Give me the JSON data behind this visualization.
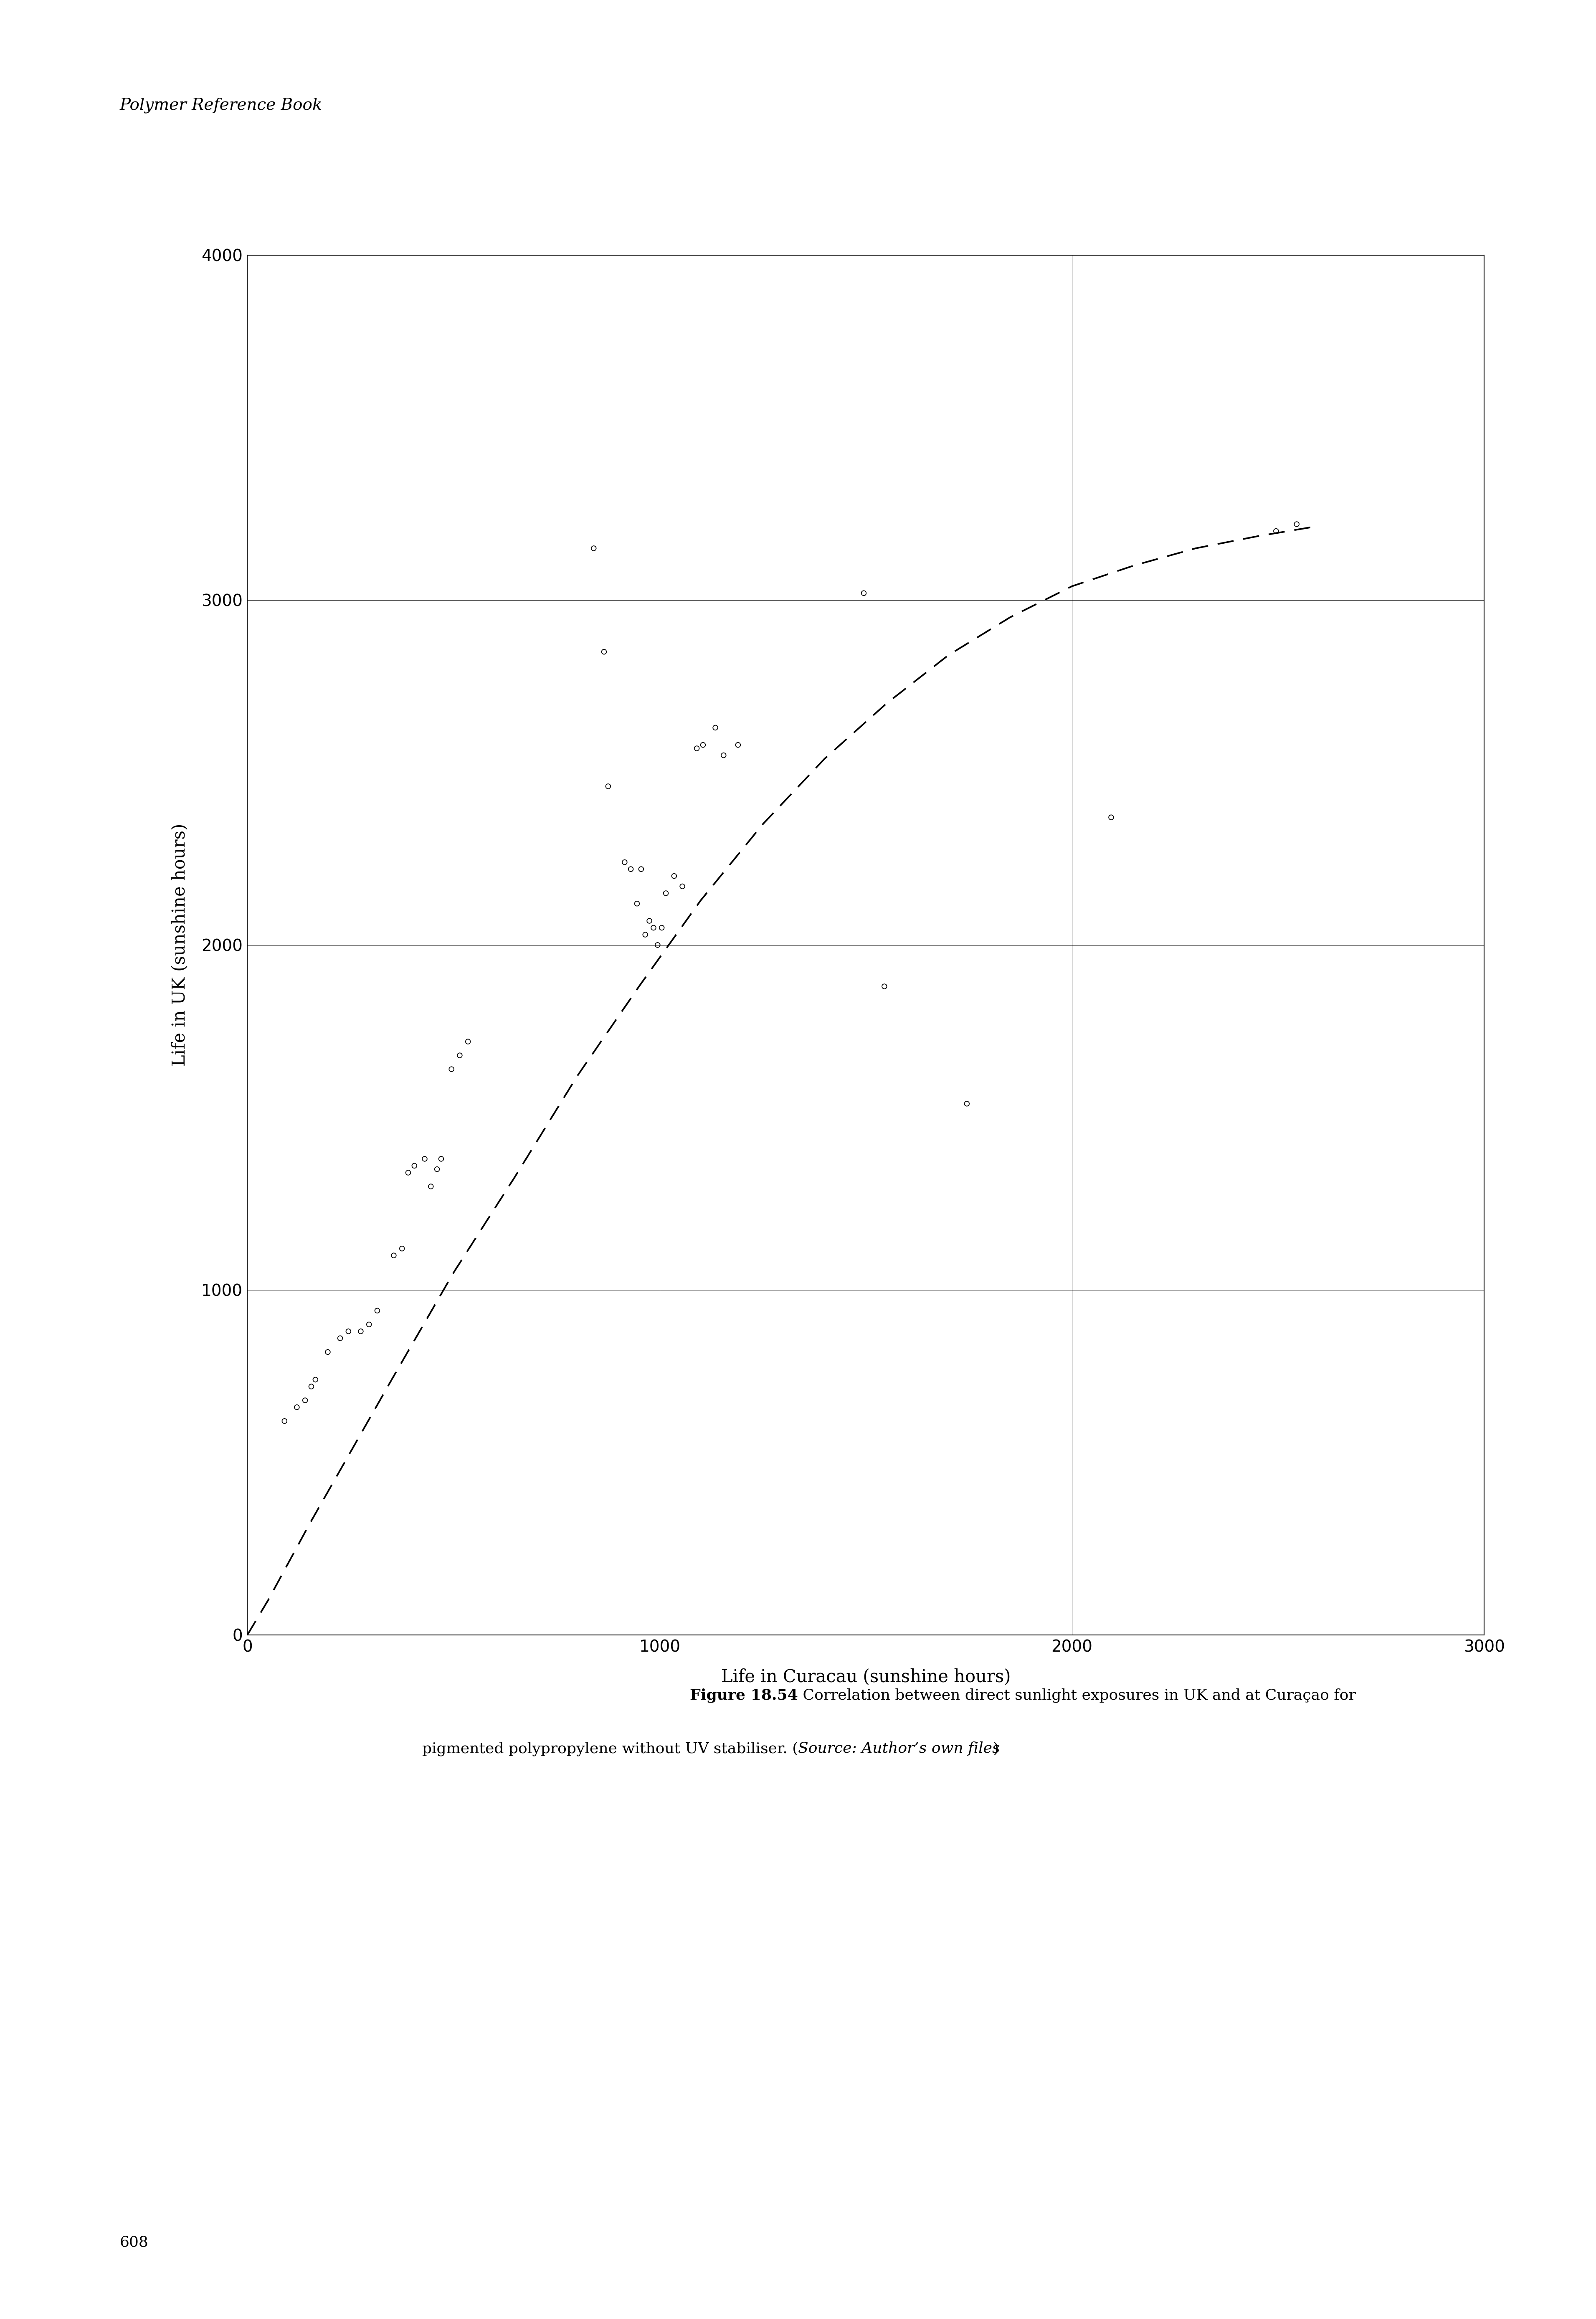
{
  "title_header": "Polymer Reference Book",
  "xlabel": "Life in Curacau (sunshine hours)",
  "ylabel": "Life in UK (sunshine hours)",
  "xlim": [
    0,
    3000
  ],
  "ylim": [
    0,
    4000
  ],
  "xticks": [
    0,
    1000,
    2000,
    3000
  ],
  "yticks": [
    0,
    1000,
    2000,
    3000,
    4000
  ],
  "page_number": "608",
  "scatter_x": [
    90,
    120,
    140,
    155,
    165,
    195,
    225,
    245,
    275,
    295,
    315,
    355,
    375,
    390,
    405,
    430,
    445,
    460,
    470,
    495,
    515,
    535,
    840,
    865,
    875,
    915,
    930,
    945,
    955,
    965,
    975,
    985,
    995,
    1005,
    1015,
    1035,
    1055,
    1090,
    1105,
    1135,
    1155,
    1190,
    1545,
    1745,
    2095,
    2495,
    1495,
    2545
  ],
  "scatter_y": [
    620,
    660,
    680,
    720,
    740,
    820,
    860,
    880,
    880,
    900,
    940,
    1100,
    1120,
    1340,
    1360,
    1380,
    1300,
    1350,
    1380,
    1640,
    1680,
    1720,
    3150,
    2850,
    2460,
    2240,
    2220,
    2120,
    2220,
    2030,
    2070,
    2050,
    2000,
    2050,
    2150,
    2200,
    2170,
    2570,
    2580,
    2630,
    2550,
    2580,
    1880,
    1540,
    2370,
    3200,
    3020,
    3220
  ],
  "curve_x": [
    0,
    50,
    150,
    250,
    350,
    500,
    650,
    800,
    950,
    1100,
    1250,
    1400,
    1550,
    1700,
    1850,
    2000,
    2150,
    2300,
    2450,
    2600
  ],
  "curve_y": [
    0,
    100,
    320,
    530,
    740,
    1050,
    1330,
    1620,
    1880,
    2130,
    2350,
    2540,
    2700,
    2840,
    2950,
    3040,
    3100,
    3150,
    3185,
    3215
  ],
  "bg_color": "#ffffff",
  "text_color": "#000000",
  "scatter_marker_size": 70,
  "scatter_linewidth": 1.3,
  "axis_linewidth": 1.5,
  "curve_linewidth": 2.8,
  "grid_linewidth": 0.8,
  "tick_labelsize": 28,
  "axis_labelsize": 30,
  "header_fontsize": 28,
  "caption_fontsize": 26,
  "page_fontsize": 26,
  "caption_bold": "Figure 18.54",
  "caption_normal1": " Correlation between direct sunlight exposures in UK and at Curaçao for",
  "caption_line2_normal": "pigmented polypropylene without UV stabiliser. (",
  "caption_italic": "Source: Author’s own files",
  "caption_close": ")"
}
